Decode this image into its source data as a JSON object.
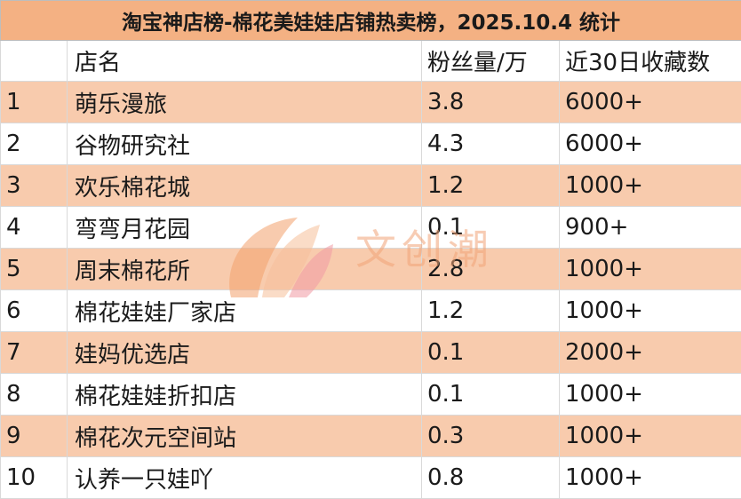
{
  "title": "淘宝神店榜-棉花美娃娃店铺热卖榜，2025.10.4 统计",
  "headers": {
    "rank": "",
    "name": "店名",
    "fans": "粉丝量/万",
    "fav": "近30日收藏数"
  },
  "rows": [
    {
      "rank": "1",
      "name": "萌乐漫旅",
      "fans": "3.8",
      "fav": "6000+"
    },
    {
      "rank": "2",
      "name": "谷物研究社",
      "fans": "4.3",
      "fav": "6000+"
    },
    {
      "rank": "3",
      "name": "欢乐棉花城",
      "fans": "1.2",
      "fav": "1000+"
    },
    {
      "rank": "4",
      "name": "弯弯月花园",
      "fans": "0.1",
      "fav": "900+"
    },
    {
      "rank": "5",
      "name": "周末棉花所",
      "fans": "2.8",
      "fav": "1000+"
    },
    {
      "rank": "6",
      "name": "棉花娃娃厂家店",
      "fans": "1.2",
      "fav": "1000+"
    },
    {
      "rank": "7",
      "name": "娃妈优选店",
      "fans": "0.1",
      "fav": "2000+"
    },
    {
      "rank": "8",
      "name": "棉花娃娃折扣店",
      "fans": "0.1",
      "fav": "1000+"
    },
    {
      "rank": "9",
      "name": "棉花次元空间站",
      "fans": "0.3",
      "fav": "1000+"
    },
    {
      "rank": "10",
      "name": "认养一只娃吖",
      "fans": "0.8",
      "fav": "1000+"
    }
  ],
  "watermark": {
    "text": "文创潮",
    "icon": "petal-logo-icon"
  }
}
